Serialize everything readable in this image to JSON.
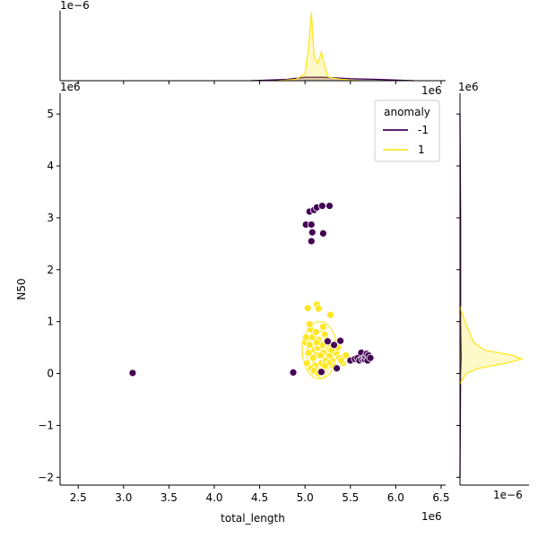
{
  "chart_data": {
    "type": "scatter",
    "title": "",
    "xlabel": "total_length",
    "ylabel": "N50",
    "x_exponent_label": "1e6",
    "y_exponent_label": "1e6",
    "marginal_x_exponent_label": "1e−6",
    "marginal_y_exponent_label": "1e−6",
    "xlim": [
      2.3,
      6.55
    ],
    "ylim": [
      -2.15,
      5.4
    ],
    "xticks": [
      "2.5",
      "3.0",
      "3.5",
      "4.0",
      "4.5",
      "5.0",
      "5.5",
      "6.0",
      "6.5"
    ],
    "yticks": [
      "−2",
      "−1",
      "0",
      "1",
      "2",
      "3",
      "4",
      "5"
    ],
    "xtick_values": [
      2.5,
      3.0,
      3.5,
      4.0,
      4.5,
      5.0,
      5.5,
      6.0,
      6.5
    ],
    "ytick_values": [
      -2,
      -1,
      0,
      1,
      2,
      3,
      4,
      5
    ],
    "grid": false,
    "legend": {
      "title": "anomaly",
      "placement": "top-right",
      "entries": [
        {
          "label": "-1",
          "color": "#440154"
        },
        {
          "label": "1",
          "color": "#fde725"
        }
      ]
    },
    "series": [
      {
        "name": "-1",
        "color": "#440154",
        "x": [
          3.1,
          4.87,
          5.01,
          5.05,
          5.07,
          5.08,
          5.07,
          5.1,
          5.13,
          5.19,
          5.2,
          5.27,
          5.35,
          5.39,
          5.5,
          5.55,
          5.58,
          5.6,
          5.62,
          5.63,
          5.65,
          5.66,
          5.67,
          5.68,
          5.69,
          5.7,
          5.72,
          5.18,
          5.32,
          5.25
        ],
        "y": [
          0.01,
          0.02,
          2.87,
          3.12,
          2.87,
          2.72,
          2.55,
          3.15,
          3.2,
          3.23,
          2.7,
          3.23,
          0.1,
          0.63,
          0.25,
          0.28,
          0.3,
          0.25,
          0.4,
          0.28,
          0.3,
          0.27,
          0.33,
          0.38,
          0.25,
          0.35,
          0.3,
          0.03,
          0.55,
          0.62
        ]
      },
      {
        "name": "1",
        "color": "#fde725",
        "x": [
          5.03,
          5.13,
          5.15,
          5.2,
          5.28,
          5.0,
          5.05,
          5.08,
          5.1,
          5.12,
          5.15,
          5.17,
          5.2,
          5.22,
          5.25,
          5.28,
          5.3,
          5.32,
          5.35,
          5.02,
          5.04,
          5.06,
          5.09,
          5.11,
          5.14,
          5.16,
          5.18,
          5.21,
          5.24,
          5.27,
          5.31,
          5.34,
          5.38,
          5.42,
          5.45,
          5.07,
          5.12,
          5.19,
          5.23,
          5.29,
          5.01,
          5.13,
          5.17,
          5.26,
          5.36,
          5.4,
          5.1,
          5.22,
          5.05,
          5.15
        ],
        "y": [
          1.26,
          1.33,
          1.25,
          0.9,
          1.13,
          0.6,
          0.55,
          0.7,
          0.45,
          0.35,
          0.65,
          0.5,
          0.4,
          0.75,
          0.3,
          0.55,
          0.25,
          0.45,
          0.6,
          0.2,
          0.4,
          0.85,
          0.3,
          0.15,
          0.5,
          0.05,
          0.2,
          0.1,
          0.65,
          0.35,
          0.15,
          0.4,
          0.3,
          0.2,
          0.35,
          0.1,
          0.8,
          0.55,
          0.25,
          0.45,
          0.7,
          0.6,
          0.35,
          0.2,
          0.5,
          0.25,
          0.05,
          0.15,
          0.95,
          0.0
        ]
      }
    ],
    "marginal_x_density": {
      "series": [
        {
          "name": "-1",
          "color": "#440154",
          "x": [
            4.4,
            4.8,
            5.0,
            5.2,
            5.5,
            5.8,
            6.2
          ],
          "y": [
            0.0,
            0.02,
            0.05,
            0.05,
            0.03,
            0.02,
            0.0
          ]
        },
        {
          "name": "1",
          "color": "#fde725",
          "x": [
            4.7,
            4.9,
            5.0,
            5.04,
            5.07,
            5.1,
            5.14,
            5.18,
            5.21,
            5.25,
            5.3,
            5.4,
            5.6
          ],
          "y": [
            0.0,
            0.02,
            0.1,
            0.5,
            1.0,
            0.35,
            0.25,
            0.42,
            0.25,
            0.06,
            0.04,
            0.02,
            0.0
          ]
        }
      ]
    },
    "marginal_y_density": {
      "series": [
        {
          "name": "-1",
          "color": "#440154",
          "y": [
            -2.0,
            0.0,
            0.3,
            1.0,
            2.5,
            3.0,
            5.0
          ],
          "x": [
            0.0,
            0.01,
            0.02,
            0.01,
            0.01,
            0.01,
            0.0
          ]
        },
        {
          "name": "1",
          "color": "#fde725",
          "y": [
            -0.2,
            0.0,
            0.1,
            0.2,
            0.28,
            0.35,
            0.45,
            0.6,
            0.8,
            1.0,
            1.3
          ],
          "x": [
            0.0,
            0.1,
            0.3,
            0.75,
            1.0,
            0.85,
            0.4,
            0.22,
            0.15,
            0.08,
            0.0
          ]
        }
      ]
    }
  }
}
